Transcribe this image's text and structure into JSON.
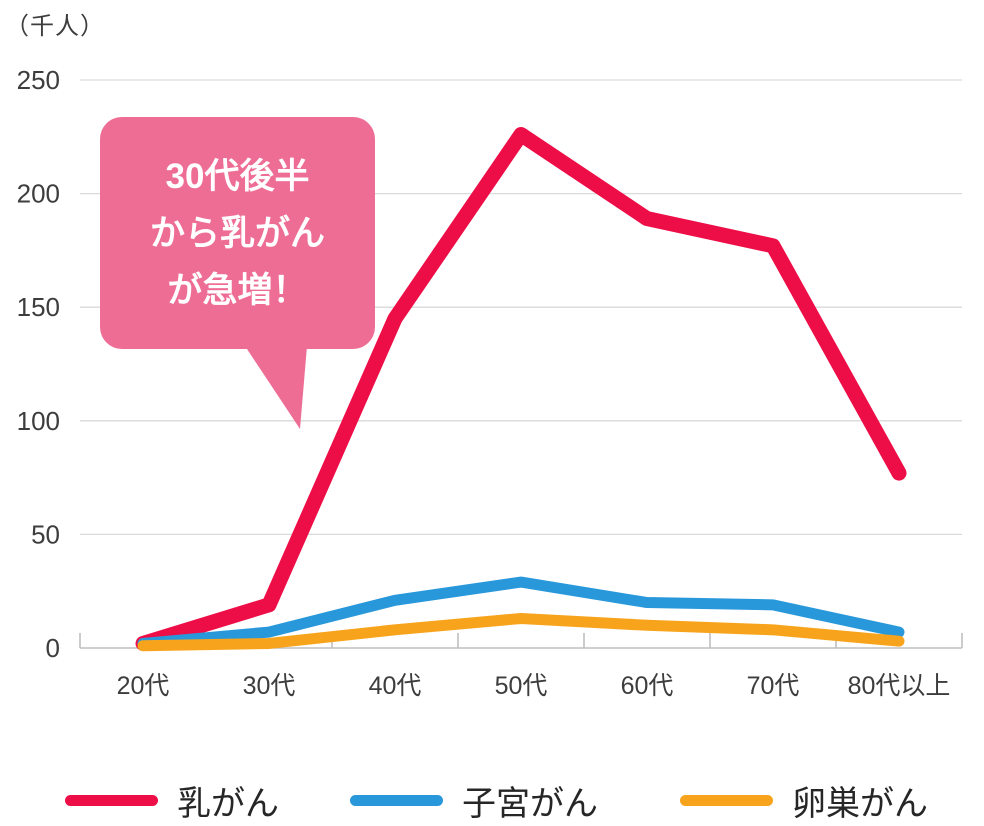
{
  "unit_label": "（千人）",
  "annotation": {
    "lines": [
      "30代後半",
      "から乳がん",
      "が急増！"
    ],
    "bubble_color": "#EE6D95",
    "text_color": "#FFFFFF"
  },
  "chart_data": {
    "type": "line",
    "title": "",
    "categories": [
      "20代",
      "30代",
      "40代",
      "50代",
      "60代",
      "70代",
      "80代以上"
    ],
    "series": [
      {
        "name": "乳がん",
        "color": "#ED0E48",
        "stroke_width": 15,
        "values": [
          2,
          19,
          145,
          226,
          189,
          177,
          77
        ]
      },
      {
        "name": "子宮がん",
        "color": "#2898DB",
        "stroke_width": 11,
        "values": [
          2,
          7,
          21,
          29,
          20,
          19,
          7
        ]
      },
      {
        "name": "卵巣がん",
        "color": "#F7A41C",
        "stroke_width": 11,
        "values": [
          1,
          2,
          8,
          13,
          10,
          8,
          3
        ]
      }
    ],
    "xlabel": "",
    "ylabel": "（千人）",
    "ylim": [
      0,
      250
    ],
    "yticks": [
      0,
      50,
      100,
      150,
      200,
      250
    ],
    "grid": true,
    "grid_color": "#DADADA",
    "axis_color": "#BFBFBF",
    "tick_label_color": "#3D3D3D",
    "legend_position": "bottom",
    "annotation": "30代後半から乳がんが急増！"
  }
}
